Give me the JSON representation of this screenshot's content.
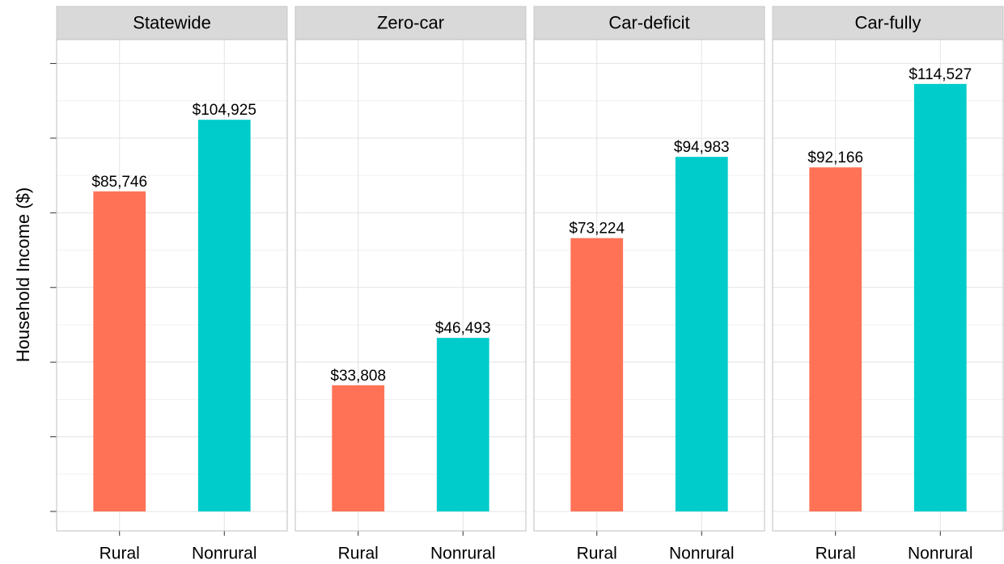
{
  "chart_data": {
    "type": "bar",
    "y_label": "Household Income ($)",
    "categories": [
      "Rural",
      "Nonrural"
    ],
    "colors": [
      "#ff7256",
      "#00cccc"
    ],
    "ylim": [
      -5200,
      126400
    ],
    "yticks": [
      0,
      20000,
      40000,
      60000,
      80000,
      100000,
      120000
    ],
    "grid": true,
    "facets": [
      {
        "title": "Statewide",
        "values": [
          85746,
          104925
        ],
        "value_labels": [
          "$85,746",
          "$104,925"
        ]
      },
      {
        "title": "Zero-car",
        "values": [
          33808,
          46493
        ],
        "value_labels": [
          "$33,808",
          "$46,493"
        ]
      },
      {
        "title": "Car-deficit",
        "values": [
          73224,
          94983
        ],
        "value_labels": [
          "$73,224",
          "$94,983"
        ]
      },
      {
        "title": "Car-fully",
        "values": [
          92166,
          114527
        ],
        "value_labels": [
          "$92,166",
          "$114,527"
        ]
      }
    ]
  }
}
